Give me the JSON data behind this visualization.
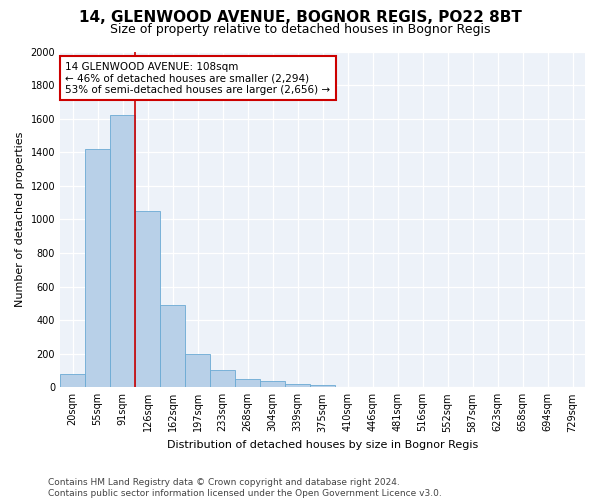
{
  "title_line1": "14, GLENWOOD AVENUE, BOGNOR REGIS, PO22 8BT",
  "title_line2": "Size of property relative to detached houses in Bognor Regis",
  "xlabel": "Distribution of detached houses by size in Bognor Regis",
  "ylabel": "Number of detached properties",
  "footnote": "Contains HM Land Registry data © Crown copyright and database right 2024.\nContains public sector information licensed under the Open Government Licence v3.0.",
  "categories": [
    "20sqm",
    "55sqm",
    "91sqm",
    "126sqm",
    "162sqm",
    "197sqm",
    "233sqm",
    "268sqm",
    "304sqm",
    "339sqm",
    "375sqm",
    "410sqm",
    "446sqm",
    "481sqm",
    "516sqm",
    "552sqm",
    "587sqm",
    "623sqm",
    "658sqm",
    "694sqm",
    "729sqm"
  ],
  "values": [
    80,
    1420,
    1620,
    1050,
    490,
    200,
    105,
    48,
    35,
    22,
    15,
    0,
    0,
    0,
    0,
    0,
    0,
    0,
    0,
    0,
    0
  ],
  "bar_color": "#b8d0e8",
  "bar_edge_color": "#6aaad4",
  "vline_color": "#cc0000",
  "vline_x_index": 2,
  "annotation_text": "14 GLENWOOD AVENUE: 108sqm\n← 46% of detached houses are smaller (2,294)\n53% of semi-detached houses are larger (2,656) →",
  "annotation_box_color": "white",
  "annotation_box_edge_color": "#cc0000",
  "ylim": [
    0,
    2000
  ],
  "yticks": [
    0,
    200,
    400,
    600,
    800,
    1000,
    1200,
    1400,
    1600,
    1800,
    2000
  ],
  "background_color": "#edf2f9",
  "grid_color": "white",
  "title_fontsize": 11,
  "subtitle_fontsize": 9,
  "axis_label_fontsize": 8,
  "tick_fontsize": 7,
  "footnote_fontsize": 6.5
}
